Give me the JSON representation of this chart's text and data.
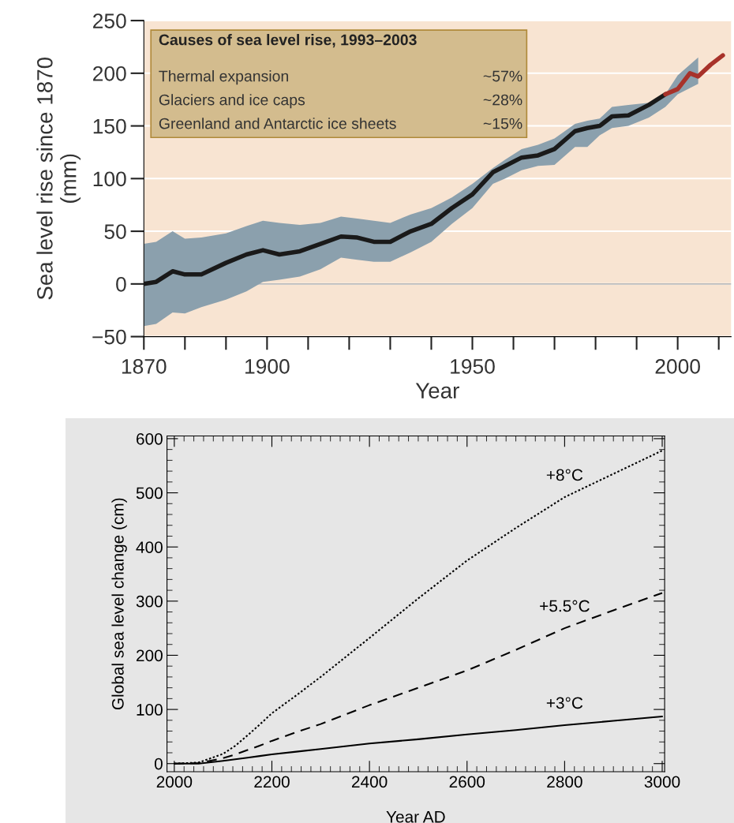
{
  "chart_data": [
    {
      "type": "line",
      "xlabel": "Year",
      "ylabel": "Sea level rise since 1870\n(mm)",
      "annotations": [
        "Causes of sea level rise, 1993–2003",
        "Thermal expansion",
        "~57%",
        "Glaciers and ice caps",
        "~28%",
        "Greenland and Antarctic ice sheets",
        "~15%"
      ],
      "xlim": [
        1870,
        2013
      ],
      "ylim": [
        -50,
        250
      ],
      "xticks": [
        1870,
        1900,
        1950,
        2000
      ],
      "yticks": [
        -50,
        0,
        50,
        100,
        150,
        200,
        250
      ],
      "grid": "y",
      "legend": false,
      "series": [
        {
          "color": "#1a1a1a",
          "x": [
            1870,
            1873,
            1877,
            1880,
            1884,
            1890,
            1895,
            1899,
            1903,
            1908,
            1913,
            1918,
            1922,
            1926,
            1930,
            1935,
            1940,
            1945,
            1950,
            1955,
            1958,
            1962,
            1966,
            1970,
            1975,
            1978,
            1981,
            1984,
            1988,
            1993,
            1997,
            2000,
            2005
          ],
          "values": [
            0,
            2,
            12,
            9,
            9,
            20,
            28,
            32,
            28,
            31,
            38,
            45,
            44,
            40,
            40,
            50,
            57,
            72,
            85,
            106,
            112,
            120,
            122,
            128,
            145,
            148,
            150,
            159,
            160,
            170,
            180,
            null,
            null
          ],
          "upper": [
            38,
            40,
            50,
            43,
            44,
            48,
            55,
            60,
            58,
            56,
            58,
            64,
            62,
            60,
            58,
            66,
            72,
            82,
            95,
            110,
            118,
            128,
            132,
            138,
            152,
            155,
            157,
            168,
            170,
            172,
            180,
            198,
            215
          ],
          "lower": [
            -40,
            -38,
            -27,
            -28,
            -22,
            -15,
            -7,
            2,
            4,
            7,
            14,
            25,
            23,
            21,
            21,
            30,
            40,
            57,
            72,
            95,
            100,
            108,
            112,
            113,
            130,
            130,
            141,
            148,
            150,
            158,
            168,
            180,
            190
          ]
        },
        {
          "color": "#a8322a",
          "x": [
            1997,
            2000,
            2003,
            2005,
            2008,
            2011
          ],
          "values": [
            180,
            185,
            200,
            197,
            208,
            217
          ]
        }
      ]
    },
    {
      "type": "line",
      "xlabel": "Year AD",
      "ylabel": "Global sea level change (cm)",
      "xlim": [
        1985,
        3005
      ],
      "ylim": [
        -15,
        605
      ],
      "xticks": [
        2000,
        2200,
        2400,
        2600,
        2800,
        3000
      ],
      "yticks": [
        0,
        100,
        200,
        300,
        400,
        500,
        600
      ],
      "grid": false,
      "legend": false,
      "x": [
        2000,
        2050,
        2100,
        2125,
        2150,
        2175,
        2200,
        2250,
        2300,
        2400,
        2500,
        2600,
        2700,
        2800,
        2900,
        3000
      ],
      "series": [
        {
          "name": "+8°C",
          "color": "#000000",
          "line_style": "dotted",
          "values": [
            0,
            2,
            18,
            33,
            52,
            72,
            93,
            126,
            160,
            232,
            305,
            375,
            435,
            492,
            535,
            578
          ]
        },
        {
          "name": "+5.5°C",
          "color": "#000000",
          "line_style": "dashed",
          "values": [
            0,
            1,
            10,
            17,
            25,
            33,
            42,
            58,
            73,
            108,
            140,
            172,
            210,
            250,
            283,
            315
          ]
        },
        {
          "name": "+3°C",
          "color": "#000000",
          "line_style": "solid",
          "values": [
            0,
            0,
            5,
            8,
            11,
            14,
            17,
            22,
            27,
            37,
            45,
            54,
            62,
            71,
            79,
            87
          ]
        }
      ]
    }
  ]
}
